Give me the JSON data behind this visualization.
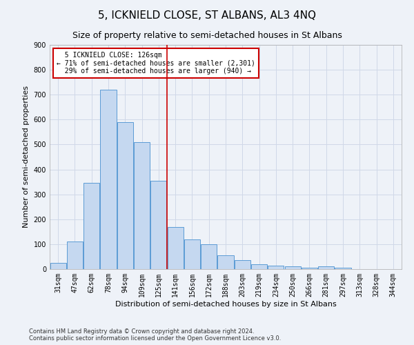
{
  "title": "5, ICKNIELD CLOSE, ST ALBANS, AL3 4NQ",
  "subtitle": "Size of property relative to semi-detached houses in St Albans",
  "xlabel": "Distribution of semi-detached houses by size in St Albans",
  "ylabel": "Number of semi-detached properties",
  "categories": [
    "31sqm",
    "47sqm",
    "62sqm",
    "78sqm",
    "94sqm",
    "109sqm",
    "125sqm",
    "141sqm",
    "156sqm",
    "172sqm",
    "188sqm",
    "203sqm",
    "219sqm",
    "234sqm",
    "250sqm",
    "266sqm",
    "281sqm",
    "297sqm",
    "313sqm",
    "328sqm",
    "344sqm"
  ],
  "values": [
    25,
    110,
    345,
    720,
    590,
    510,
    355,
    170,
    120,
    100,
    55,
    35,
    20,
    15,
    12,
    5,
    12,
    5,
    0,
    0,
    0
  ],
  "bar_color": "#c5d8f0",
  "bar_edge_color": "#5b9bd5",
  "grid_color": "#d0d8e8",
  "background_color": "#eef2f8",
  "pct_smaller": 71,
  "n_smaller": 2301,
  "pct_larger": 29,
  "n_larger": 940,
  "annotation_box_color": "#ffffff",
  "annotation_box_edge": "#cc0000",
  "property_line_color": "#cc0000",
  "property_line_index": 6.5,
  "ylim": [
    0,
    900
  ],
  "yticks": [
    0,
    100,
    200,
    300,
    400,
    500,
    600,
    700,
    800,
    900
  ],
  "footer1": "Contains HM Land Registry data © Crown copyright and database right 2024.",
  "footer2": "Contains public sector information licensed under the Open Government Licence v3.0.",
  "title_fontsize": 11,
  "subtitle_fontsize": 9,
  "xlabel_fontsize": 8,
  "ylabel_fontsize": 8,
  "tick_fontsize": 7,
  "annot_fontsize": 7
}
